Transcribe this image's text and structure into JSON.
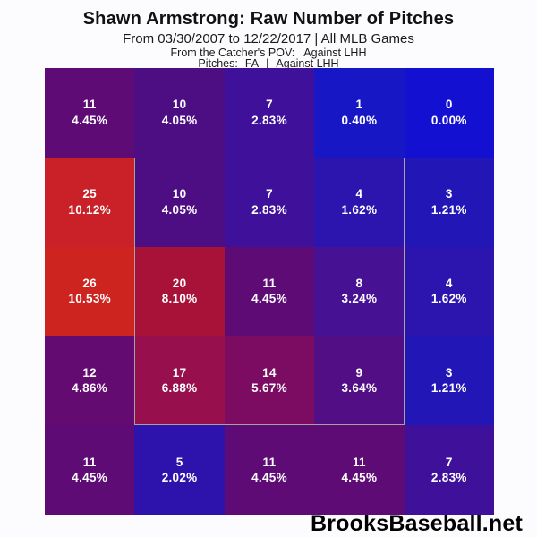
{
  "header": {
    "title": "Shawn Armstrong: Raw Number of Pitches",
    "subtitle": "From 03/30/2007 to 12/22/2017 | All MLB Games",
    "pov_label": "From the Catcher's POV:",
    "pov_value": "Against LHH",
    "pitches_label": "Pitches:",
    "pitches_value": "FA",
    "pitches_separator": "|",
    "pitches_vs": "Against LHH"
  },
  "footer": {
    "brand": "BrooksBaseball.net"
  },
  "chart_data": {
    "type": "heatmap",
    "title": "Shawn Armstrong: Raw Number of Pitches",
    "subtitle": "From 03/30/2007 to 12/22/2017 | All MLB Games",
    "pov": "Against LHH",
    "pitch_type": "FA",
    "rows": 5,
    "cols": 5,
    "value_format": "count over percent",
    "color_scale": {
      "low": "#1310d2",
      "mid": "#5e0b76",
      "high": "#cd2420"
    },
    "strike_zone": {
      "row_start": 2,
      "col_start": 2,
      "row_end": 4,
      "col_end": 4,
      "outline_color": "#a3a3a3"
    },
    "cells": [
      [
        {
          "count": "11",
          "pct": "4.45%",
          "color": "#5e0b76"
        },
        {
          "count": "10",
          "pct": "4.05%",
          "color": "#4d0d83"
        },
        {
          "count": "7",
          "pct": "2.83%",
          "color": "#3f119b"
        },
        {
          "count": "1",
          "pct": "0.40%",
          "color": "#1717c6"
        },
        {
          "count": "0",
          "pct": "0.00%",
          "color": "#1310d2"
        }
      ],
      [
        {
          "count": "25",
          "pct": "10.12%",
          "color": "#c92127"
        },
        {
          "count": "10",
          "pct": "4.05%",
          "color": "#4d0d83"
        },
        {
          "count": "7",
          "pct": "2.83%",
          "color": "#3f119b"
        },
        {
          "count": "4",
          "pct": "1.62%",
          "color": "#2b15ae"
        },
        {
          "count": "3",
          "pct": "1.21%",
          "color": "#2316b6"
        }
      ],
      [
        {
          "count": "26",
          "pct": "10.53%",
          "color": "#cd2420"
        },
        {
          "count": "20",
          "pct": "8.10%",
          "color": "#a81138"
        },
        {
          "count": "11",
          "pct": "4.45%",
          "color": "#5e0b76"
        },
        {
          "count": "8",
          "pct": "3.24%",
          "color": "#461193"
        },
        {
          "count": "4",
          "pct": "1.62%",
          "color": "#2b15ae"
        }
      ],
      [
        {
          "count": "12",
          "pct": "4.86%",
          "color": "#640b71"
        },
        {
          "count": "17",
          "pct": "6.88%",
          "color": "#970f4c"
        },
        {
          "count": "14",
          "pct": "5.67%",
          "color": "#7b0c62"
        },
        {
          "count": "9",
          "pct": "3.64%",
          "color": "#510e85"
        },
        {
          "count": "3",
          "pct": "1.21%",
          "color": "#2316b6"
        }
      ],
      [
        {
          "count": "11",
          "pct": "4.45%",
          "color": "#5e0b76"
        },
        {
          "count": "5",
          "pct": "2.02%",
          "color": "#2e12ac"
        },
        {
          "count": "11",
          "pct": "4.45%",
          "color": "#5e0b76"
        },
        {
          "count": "11",
          "pct": "4.45%",
          "color": "#5e0b76"
        },
        {
          "count": "7",
          "pct": "2.83%",
          "color": "#3f119b"
        }
      ]
    ]
  }
}
